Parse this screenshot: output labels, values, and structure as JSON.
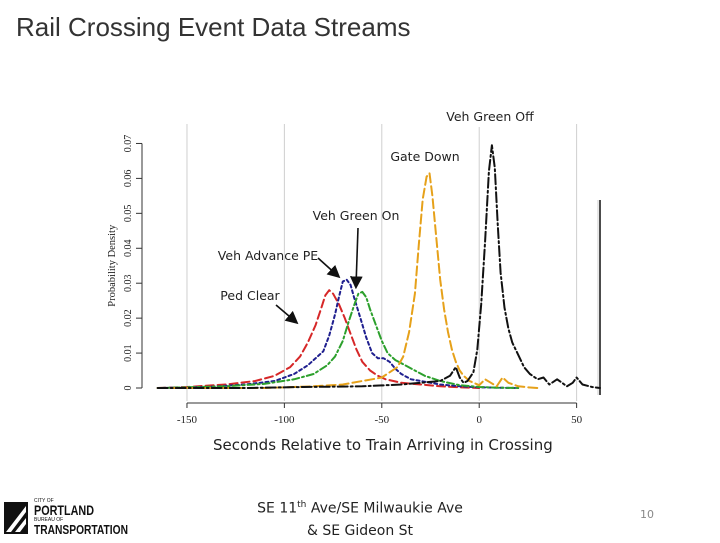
{
  "slide": {
    "title": "Rail Crossing Event Data Streams",
    "page_number": "10",
    "location_line1_pre": "SE 11",
    "location_line1_sup": "th",
    "location_line1_post": " Ave/SE Milwaukie Ave",
    "location_line2": "& SE Gideon St"
  },
  "logo": {
    "city_of": "CITY OF",
    "portland": "PORTLAND",
    "bureau_of": "BUREAU OF",
    "transportation": "TRANSPORTATION"
  },
  "chart_data": {
    "type": "line",
    "title": "",
    "xlabel": "Seconds Relative to Train Arriving in Crossing",
    "ylabel": "Probability Density",
    "xlim": [
      -170,
      62
    ],
    "ylim": [
      -0.002,
      0.075
    ],
    "x_ticks": [
      -150,
      -100,
      -50,
      0,
      50
    ],
    "x_tick_labels": [
      "-150",
      "-100",
      "-50",
      "0",
      "50"
    ],
    "y_ticks": [
      0,
      0.01,
      0.02,
      0.03,
      0.04,
      0.05,
      0.06,
      0.07
    ],
    "y_tick_labels": [
      "0",
      "0.01",
      "0.02",
      "0.03",
      "0.04",
      "0.05",
      "0.06",
      "0.07"
    ],
    "grid": "vertical",
    "series": [
      {
        "color": "#d62728",
        "dash": "8,4",
        "x": [
          -165,
          -150,
          -130,
          -115,
          -105,
          -97,
          -92,
          -88,
          -84,
          -81,
          -79,
          -77,
          -75,
          -72,
          -69,
          -66,
          -63,
          -60,
          -56,
          -52,
          -48,
          -40,
          -30,
          -20,
          -10,
          0
        ],
        "values": [
          0,
          0.0003,
          0.001,
          0.002,
          0.0035,
          0.006,
          0.009,
          0.013,
          0.018,
          0.023,
          0.0265,
          0.028,
          0.027,
          0.024,
          0.02,
          0.0155,
          0.011,
          0.0075,
          0.005,
          0.0035,
          0.0025,
          0.0015,
          0.001,
          0.0005,
          0.0002,
          0
        ]
      },
      {
        "color": "#1f1f8f",
        "dash": "3,3",
        "x": [
          -165,
          -140,
          -120,
          -105,
          -95,
          -88,
          -84,
          -80,
          -77,
          -74,
          -72,
          -70,
          -68,
          -66,
          -64,
          -61,
          -58,
          -55,
          -52,
          -49,
          -46,
          -43,
          -40,
          -35,
          -30,
          -20,
          -10,
          0,
          10,
          20
        ],
        "values": [
          0,
          0.0003,
          0.001,
          0.002,
          0.004,
          0.0065,
          0.0085,
          0.0105,
          0.015,
          0.021,
          0.026,
          0.0305,
          0.031,
          0.0295,
          0.0255,
          0.02,
          0.0145,
          0.01,
          0.0085,
          0.0085,
          0.0075,
          0.0055,
          0.004,
          0.0025,
          0.002,
          0.001,
          0.0005,
          0.0002,
          0.0001,
          0
        ]
      },
      {
        "color": "#2ca02c",
        "dash": "7,3,2,3",
        "x": [
          -165,
          -130,
          -110,
          -95,
          -85,
          -78,
          -74,
          -70,
          -67,
          -64,
          -62,
          -60,
          -58,
          -56,
          -53,
          -50,
          -47,
          -43,
          -38,
          -33,
          -28,
          -20,
          -10,
          0,
          10,
          20
        ],
        "values": [
          0,
          0.0005,
          0.0012,
          0.0025,
          0.004,
          0.0065,
          0.009,
          0.0135,
          0.019,
          0.024,
          0.027,
          0.0275,
          0.026,
          0.0225,
          0.018,
          0.0135,
          0.01,
          0.008,
          0.0065,
          0.005,
          0.0035,
          0.002,
          0.0008,
          0.0003,
          0.0001,
          0
        ]
      },
      {
        "color": "#e6a11a",
        "dash": "9,4",
        "x": [
          -165,
          -110,
          -85,
          -70,
          -60,
          -55,
          -50,
          -46,
          -42,
          -39,
          -36,
          -33,
          -31,
          -29,
          -27,
          -25.5,
          -24,
          -22,
          -20,
          -18,
          -16,
          -14,
          -12,
          -10,
          -8,
          -5,
          0,
          3,
          6,
          9,
          12,
          15,
          20,
          25,
          30
        ],
        "values": [
          0,
          0,
          0.0005,
          0.001,
          0.002,
          0.0025,
          0.003,
          0.0045,
          0.006,
          0.009,
          0.016,
          0.027,
          0.041,
          0.054,
          0.0605,
          0.0615,
          0.055,
          0.043,
          0.031,
          0.0225,
          0.016,
          0.011,
          0.0075,
          0.005,
          0.0035,
          0.002,
          0.0008,
          0.0025,
          0.0015,
          0.0005,
          0.003,
          0.0015,
          0.0005,
          0.0002,
          0
        ]
      },
      {
        "color": "#111111",
        "dash": "10,3,2,3",
        "x": [
          -165,
          -120,
          -90,
          -60,
          -40,
          -30,
          -20,
          -15,
          -12,
          -10,
          -8,
          -6,
          -3,
          -1,
          1,
          3,
          5,
          6.5,
          8,
          9.5,
          11,
          13,
          15,
          17,
          20,
          23,
          26,
          30,
          33,
          36,
          40,
          45,
          48,
          50,
          53,
          58,
          62
        ],
        "values": [
          0,
          0,
          0.0003,
          0.0005,
          0.001,
          0.0015,
          0.002,
          0.0035,
          0.006,
          0.003,
          0.0015,
          0.002,
          0.0045,
          0.011,
          0.024,
          0.042,
          0.062,
          0.0695,
          0.063,
          0.047,
          0.033,
          0.023,
          0.017,
          0.013,
          0.0095,
          0.006,
          0.004,
          0.0025,
          0.003,
          0.001,
          0.0025,
          0.0005,
          0.0015,
          0.003,
          0.001,
          0.0003,
          0
        ]
      }
    ],
    "annotations": [
      {
        "text": "Veh Green Off"
      },
      {
        "text": "Gate Down"
      },
      {
        "text": "Veh Green On"
      },
      {
        "text": "Veh Advance PE"
      },
      {
        "text": "Ped Clear"
      }
    ]
  }
}
